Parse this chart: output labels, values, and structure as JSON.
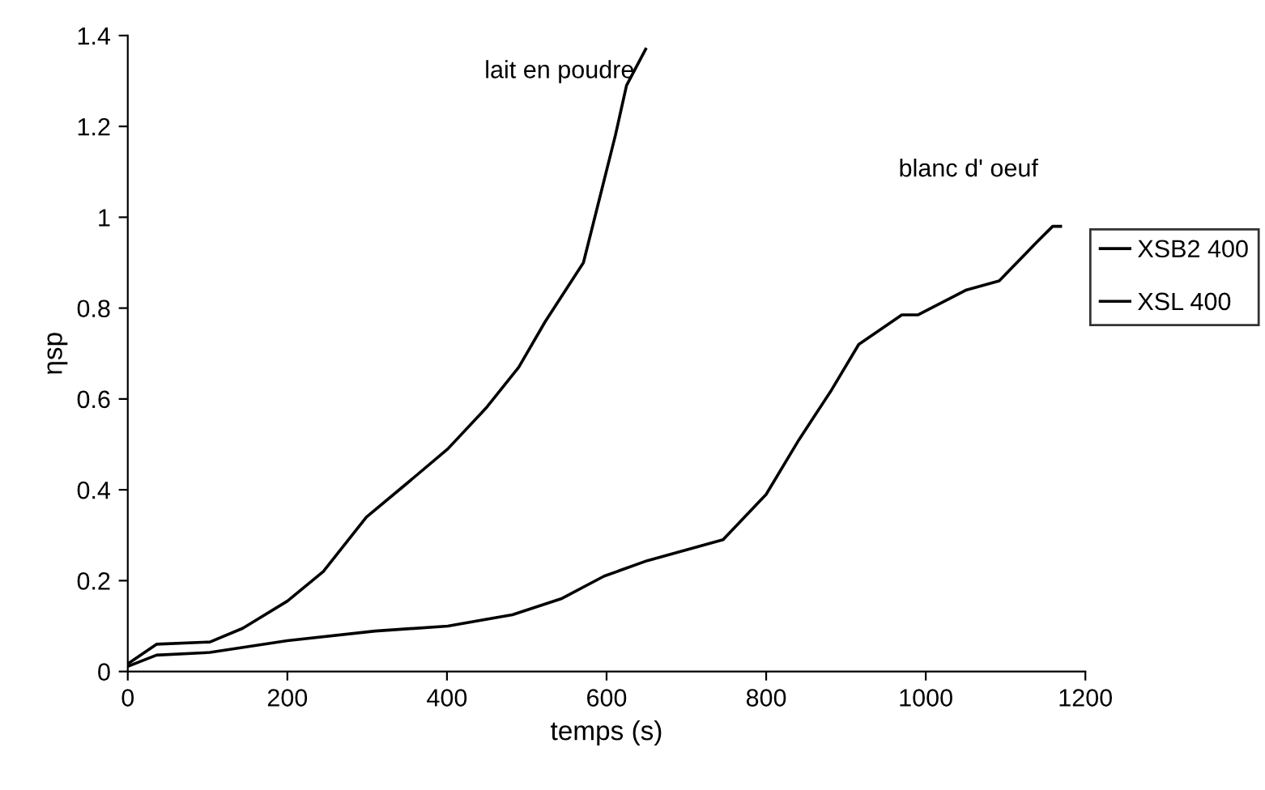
{
  "chart_data": {
    "type": "line",
    "xlabel": "temps (s)",
    "ylabel": "ηsp",
    "xlim": [
      0,
      1200
    ],
    "ylim": [
      0,
      1.4
    ],
    "xticks": [
      0,
      200,
      400,
      600,
      800,
      1000,
      1200
    ],
    "yticks": [
      0,
      0.2,
      0.4,
      0.6,
      0.8,
      1,
      1.2,
      1.4
    ],
    "grid": false,
    "legend": "right",
    "marker": "none",
    "line_style": "solid",
    "series": [
      {
        "name": "XSB2 400",
        "color": "#000000",
        "x": [
          1,
          36,
          103,
          144,
          200,
          245,
          299,
          347,
          401,
          449,
          490,
          523,
          571,
          591,
          611,
          625,
          649
        ],
        "values": [
          0.018,
          0.06,
          0.065,
          0.095,
          0.155,
          0.22,
          0.34,
          0.41,
          0.49,
          0.58,
          0.67,
          0.77,
          0.9,
          1.04,
          1.18,
          1.29,
          1.37
        ]
      },
      {
        "name": "XSL 400",
        "color": "#000000",
        "x": [
          1,
          36,
          103,
          200,
          310,
          401,
          482,
          543,
          597,
          651,
          746,
          800,
          841,
          882,
          916,
          970,
          990,
          1051,
          1092,
          1139,
          1159,
          1169
        ],
        "values": [
          0.012,
          0.036,
          0.042,
          0.068,
          0.089,
          0.1,
          0.125,
          0.16,
          0.21,
          0.244,
          0.29,
          0.39,
          0.51,
          0.62,
          0.72,
          0.785,
          0.785,
          0.84,
          0.86,
          0.945,
          0.98,
          0.98
        ]
      }
    ],
    "annotations": [
      {
        "text": "lait en poudre",
        "x": 649,
        "y": 1.37
      },
      {
        "text": "blanc d' oeuf",
        "x": 1169,
        "y": 0.98
      }
    ]
  }
}
